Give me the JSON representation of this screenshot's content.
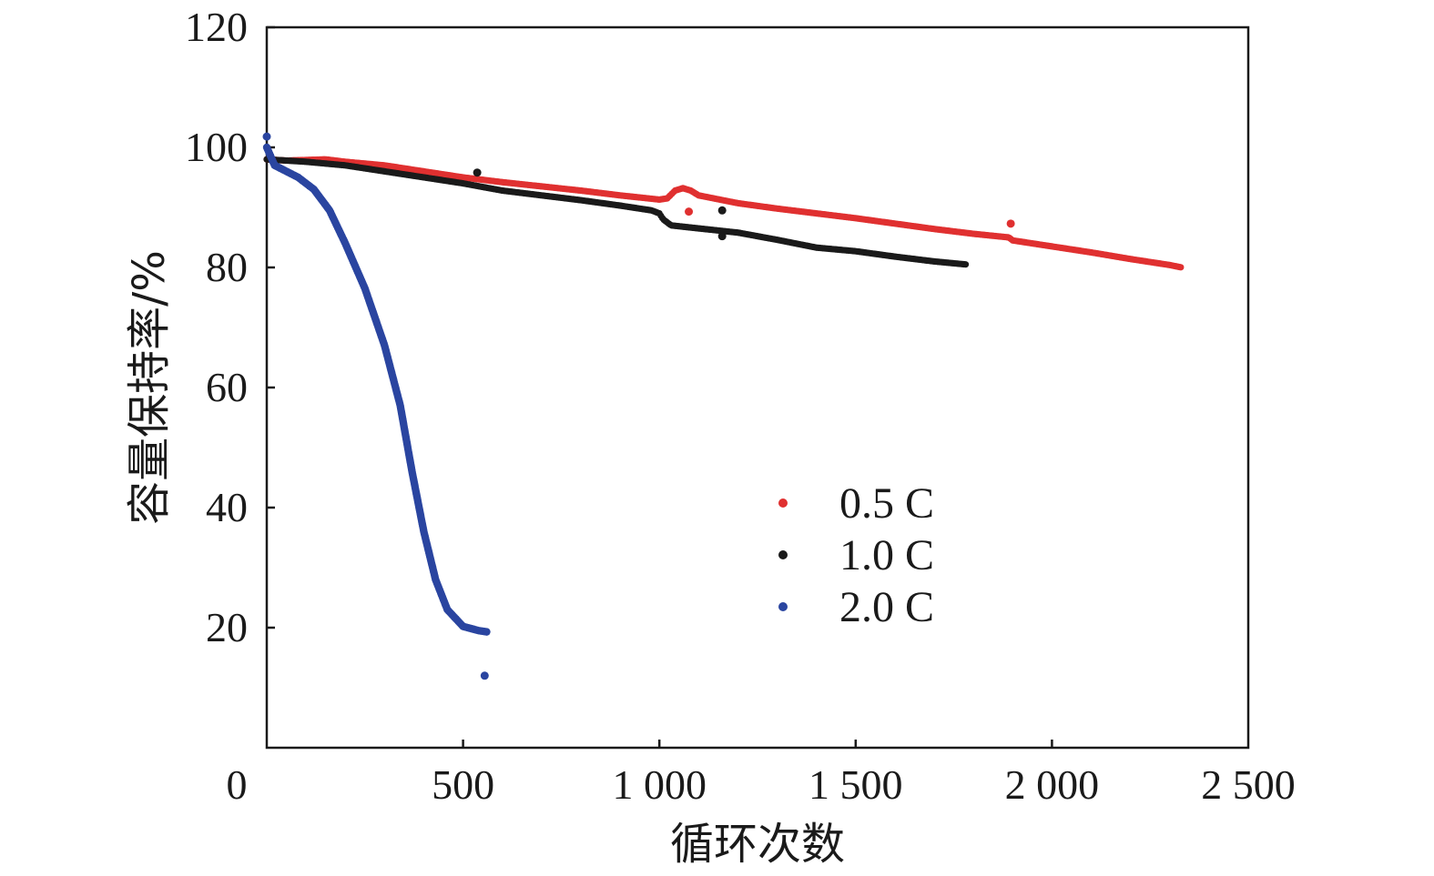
{
  "chart_data": {
    "type": "scatter",
    "title": "",
    "xlabel": "循环次数",
    "ylabel": "容量保持率/%",
    "xlim": [
      0,
      2500
    ],
    "ylim": [
      0,
      120
    ],
    "x_ticks": [
      0,
      500,
      1000,
      1500,
      2000,
      2500
    ],
    "x_tick_labels": [
      "0",
      "500",
      "1 000",
      "1 500",
      "2 000",
      "2 500"
    ],
    "y_ticks": [
      20,
      40,
      60,
      80,
      100,
      120
    ],
    "y_tick_labels": [
      "20",
      "40",
      "60",
      "80",
      "100",
      "120"
    ],
    "grid": false,
    "legend_position": "center-right",
    "series": [
      {
        "name": "0.5 C",
        "color": "#e03030",
        "points": [
          [
            0,
            98
          ],
          [
            50,
            97.8
          ],
          [
            100,
            97.9
          ],
          [
            150,
            98
          ],
          [
            200,
            97.6
          ],
          [
            300,
            97
          ],
          [
            400,
            96
          ],
          [
            500,
            95
          ],
          [
            600,
            94.2
          ],
          [
            700,
            93.5
          ],
          [
            800,
            92.8
          ],
          [
            900,
            92
          ],
          [
            1000,
            91.3
          ],
          [
            1020,
            91.5
          ],
          [
            1040,
            92.8
          ],
          [
            1060,
            93.2
          ],
          [
            1080,
            92.8
          ],
          [
            1100,
            92
          ],
          [
            1200,
            90.7
          ],
          [
            1300,
            89.8
          ],
          [
            1400,
            89
          ],
          [
            1500,
            88.2
          ],
          [
            1600,
            87.3
          ],
          [
            1700,
            86.4
          ],
          [
            1800,
            85.6
          ],
          [
            1890,
            85
          ],
          [
            1900,
            84.5
          ],
          [
            2000,
            83.5
          ],
          [
            2100,
            82.5
          ],
          [
            2200,
            81.4
          ],
          [
            2300,
            80.4
          ],
          [
            2330,
            80
          ]
        ],
        "outliers": [
          [
            1075,
            89.3
          ],
          [
            1895,
            87.3
          ]
        ]
      },
      {
        "name": "1.0 C",
        "color": "#1a1a1a",
        "points": [
          [
            0,
            98
          ],
          [
            100,
            97.6
          ],
          [
            200,
            97
          ],
          [
            300,
            96
          ],
          [
            400,
            95
          ],
          [
            500,
            94
          ],
          [
            600,
            92.8
          ],
          [
            700,
            92
          ],
          [
            800,
            91.2
          ],
          [
            900,
            90.3
          ],
          [
            980,
            89.5
          ],
          [
            1000,
            89
          ],
          [
            1010,
            88
          ],
          [
            1030,
            87
          ],
          [
            1100,
            86.5
          ],
          [
            1200,
            85.8
          ],
          [
            1300,
            84.6
          ],
          [
            1400,
            83.3
          ],
          [
            1500,
            82.7
          ],
          [
            1600,
            81.8
          ],
          [
            1700,
            81
          ],
          [
            1780,
            80.5
          ]
        ],
        "outliers": [
          [
            1160,
            89.5
          ],
          [
            1160,
            85.2
          ],
          [
            536,
            95.8
          ]
        ]
      },
      {
        "name": "2.0 C",
        "color": "#2a45a0",
        "points": [
          [
            0,
            100
          ],
          [
            20,
            97
          ],
          [
            50,
            96
          ],
          [
            80,
            95
          ],
          [
            120,
            93
          ],
          [
            160,
            89.5
          ],
          [
            200,
            84
          ],
          [
            250,
            76.5
          ],
          [
            300,
            67
          ],
          [
            340,
            57
          ],
          [
            370,
            46
          ],
          [
            400,
            36
          ],
          [
            430,
            28
          ],
          [
            460,
            23
          ],
          [
            500,
            20.2
          ],
          [
            540,
            19.5
          ],
          [
            560,
            19.3
          ]
        ],
        "outliers": [
          [
            0,
            101.8
          ],
          [
            555,
            12
          ]
        ]
      }
    ]
  }
}
